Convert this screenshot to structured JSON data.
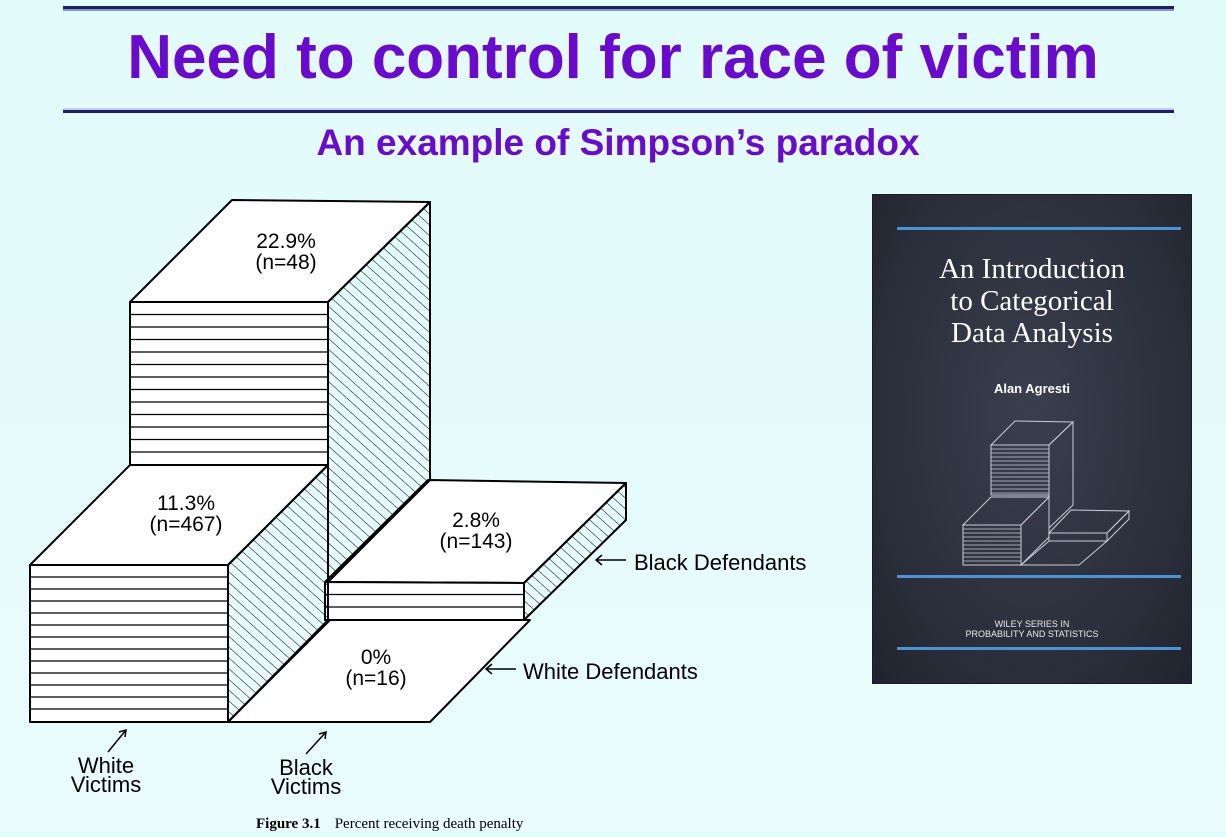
{
  "header": {
    "title": "Need to control for race of victim",
    "subtitle": "An example of Simpson’s paradox"
  },
  "figure": {
    "bars": [
      {
        "id": "white-victims-black-defendants",
        "pct_label": "22.9%",
        "n_label": "(n=48)",
        "percent": 22.9
      },
      {
        "id": "white-victims-white-defendants",
        "pct_label": "11.3%",
        "n_label": "(n=467)",
        "percent": 11.3
      },
      {
        "id": "black-victims-black-defendants",
        "pct_label": "2.8%",
        "n_label": "(n=143)",
        "percent": 2.8
      },
      {
        "id": "black-victims-white-defendants",
        "pct_label": "0%",
        "n_label": "(n=16)",
        "percent": 0
      }
    ],
    "row_labels": {
      "black_defendants": "Black Defendants",
      "white_defendants": "White Defendants"
    },
    "column_labels": {
      "white_victims_line1": "White",
      "white_victims_line2": "Victims",
      "black_victims_line1": "Black",
      "black_victims_line2": "Victims"
    },
    "caption_number": "Figure 3.1",
    "caption_text": "Percent receiving death penalty"
  },
  "book": {
    "title_line1": "An Introduction",
    "title_line2": "to Categorical",
    "title_line3": "Data Analysis",
    "author": "Alan Agresti",
    "series_line1": "WILEY SERIES IN",
    "series_line2": "PROBABILITY AND STATISTICS"
  }
}
